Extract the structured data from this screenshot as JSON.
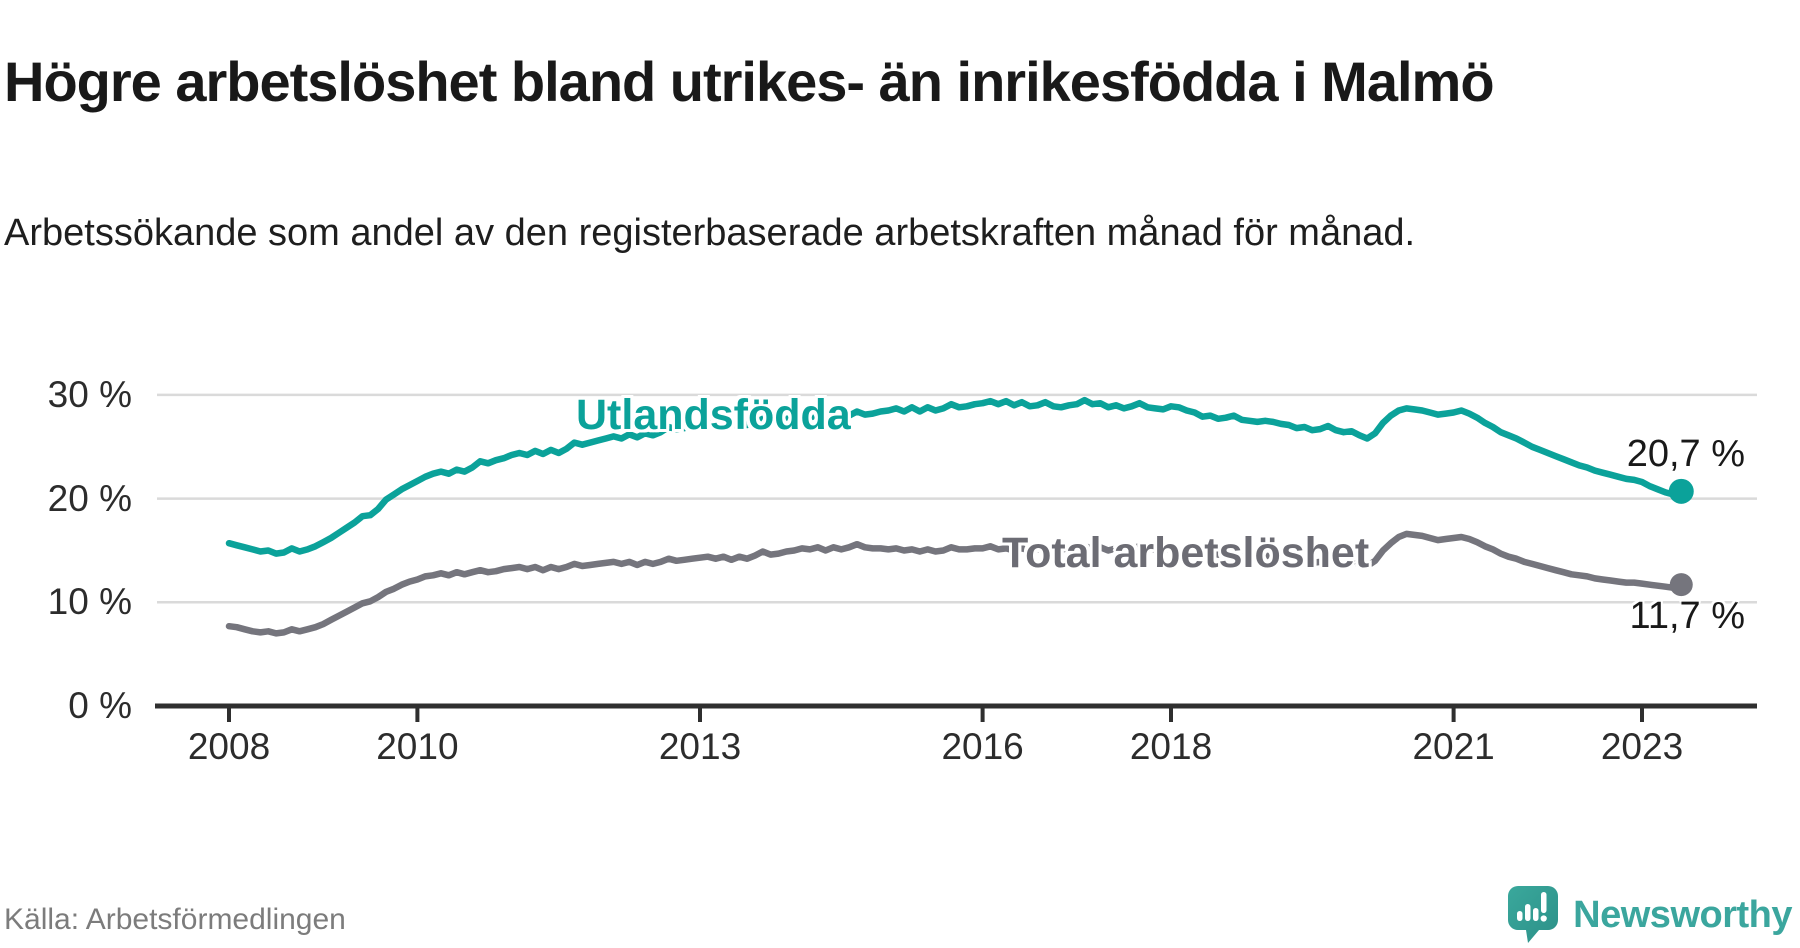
{
  "header": {
    "title": "Högre arbetslöshet bland utrikes- än inrikesfödda i Malmö",
    "subtitle": "Arbetssökande som andel av den registerbaserade arbetskraften månad för månad."
  },
  "footer": {
    "source": "Källa: Arbetsförmedlingen",
    "brand": "Newsworthy"
  },
  "colors": {
    "accent_teal": "#0ba29a",
    "line_gray": "#75757d",
    "label_gray": "#6c6c74",
    "gridline": "#dadada",
    "axis": "#2f2f2f",
    "brand_teal": "#3ba69e"
  },
  "chart_data": {
    "type": "line",
    "title": "Högre arbetslöshet bland utrikes- än inrikesfödda i Malmö",
    "subtitle": "Arbetssökande som andel av den registerbaserade arbetskraften månad för månad.",
    "xlabel": "",
    "ylabel": "",
    "grid": true,
    "legend_position": "inline-labels",
    "x_unit": "monthly, Jan 2008 – Jun 2023",
    "x_start_year": 2008,
    "x_step_years": 0.0833333,
    "xlim": [
      2007.25,
      2024.2
    ],
    "ylim": [
      0,
      31
    ],
    "x_ticks": [
      {
        "v": 2008,
        "label": "2008"
      },
      {
        "v": 2010,
        "label": "2010"
      },
      {
        "v": 2013,
        "label": "2013"
      },
      {
        "v": 2016,
        "label": "2016"
      },
      {
        "v": 2018,
        "label": "2018"
      },
      {
        "v": 2021,
        "label": "2021"
      },
      {
        "v": 2023,
        "label": "2023"
      }
    ],
    "y_ticks": [
      {
        "v": 0,
        "label": "0 %"
      },
      {
        "v": 10,
        "label": "10 %"
      },
      {
        "v": 20,
        "label": "20 %"
      },
      {
        "v": 30,
        "label": "30 %"
      }
    ],
    "series": [
      {
        "name": "Utlandsfödda",
        "color": "#0ba29a",
        "end_value": 20.7,
        "end_label": "20,7 %",
        "values": [
          15.7,
          15.5,
          15.3,
          15.1,
          14.9,
          15.0,
          14.7,
          14.8,
          15.2,
          14.9,
          15.1,
          15.4,
          15.8,
          16.2,
          16.7,
          17.2,
          17.7,
          18.3,
          18.4,
          19.0,
          19.9,
          20.4,
          20.9,
          21.3,
          21.7,
          22.1,
          22.4,
          22.6,
          22.4,
          22.8,
          22.6,
          23.0,
          23.6,
          23.4,
          23.7,
          23.9,
          24.2,
          24.4,
          24.2,
          24.6,
          24.3,
          24.7,
          24.4,
          24.8,
          25.4,
          25.2,
          25.4,
          25.6,
          25.8,
          26.0,
          25.8,
          26.2,
          25.9,
          26.3,
          26.1,
          26.4,
          26.9,
          26.7,
          26.8,
          27.0,
          27.1,
          27.3,
          27.1,
          27.4,
          27.0,
          27.4,
          27.1,
          27.3,
          27.7,
          27.4,
          27.5,
          27.7,
          27.8,
          28.0,
          27.8,
          28.1,
          27.7,
          28.1,
          27.8,
          28.0,
          28.4,
          28.1,
          28.2,
          28.4,
          28.5,
          28.7,
          28.4,
          28.8,
          28.4,
          28.8,
          28.5,
          28.7,
          29.1,
          28.8,
          28.9,
          29.1,
          29.2,
          29.4,
          29.1,
          29.4,
          29.0,
          29.3,
          28.9,
          29.0,
          29.3,
          28.9,
          28.8,
          29.0,
          29.1,
          29.5,
          29.1,
          29.2,
          28.8,
          29.0,
          28.7,
          28.9,
          29.2,
          28.8,
          28.7,
          28.6,
          28.9,
          28.8,
          28.5,
          28.3,
          27.9,
          28.0,
          27.7,
          27.8,
          28.0,
          27.6,
          27.5,
          27.4,
          27.5,
          27.4,
          27.2,
          27.1,
          26.8,
          26.9,
          26.6,
          26.7,
          27.0,
          26.6,
          26.4,
          26.5,
          26.1,
          25.8,
          26.3,
          27.3,
          28.0,
          28.5,
          28.7,
          28.6,
          28.5,
          28.3,
          28.1,
          28.2,
          28.3,
          28.5,
          28.2,
          27.8,
          27.3,
          26.9,
          26.4,
          26.1,
          25.8,
          25.4,
          25.0,
          24.7,
          24.4,
          24.1,
          23.8,
          23.5,
          23.2,
          23.0,
          22.7,
          22.5,
          22.3,
          22.1,
          21.9,
          21.8,
          21.6,
          21.2,
          20.9,
          20.6,
          20.4,
          20.7
        ]
      },
      {
        "name": "Total arbetslöshet",
        "color": "#75757d",
        "end_value": 11.7,
        "end_label": "11,7 %",
        "values": [
          7.7,
          7.6,
          7.4,
          7.2,
          7.1,
          7.2,
          7.0,
          7.1,
          7.4,
          7.2,
          7.4,
          7.6,
          7.9,
          8.3,
          8.7,
          9.1,
          9.5,
          9.9,
          10.1,
          10.5,
          11.0,
          11.3,
          11.7,
          12.0,
          12.2,
          12.5,
          12.6,
          12.8,
          12.6,
          12.9,
          12.7,
          12.9,
          13.1,
          12.9,
          13.0,
          13.2,
          13.3,
          13.4,
          13.2,
          13.4,
          13.1,
          13.4,
          13.2,
          13.4,
          13.7,
          13.5,
          13.6,
          13.7,
          13.8,
          13.9,
          13.7,
          13.9,
          13.6,
          13.9,
          13.7,
          13.9,
          14.2,
          14.0,
          14.1,
          14.2,
          14.3,
          14.4,
          14.2,
          14.4,
          14.1,
          14.4,
          14.2,
          14.5,
          14.9,
          14.6,
          14.7,
          14.9,
          15.0,
          15.2,
          15.1,
          15.3,
          15.0,
          15.3,
          15.1,
          15.3,
          15.6,
          15.3,
          15.2,
          15.2,
          15.1,
          15.2,
          15.0,
          15.1,
          14.9,
          15.1,
          14.9,
          15.0,
          15.3,
          15.1,
          15.1,
          15.2,
          15.2,
          15.4,
          15.1,
          15.2,
          15.0,
          15.2,
          15.0,
          15.1,
          15.4,
          15.2,
          15.1,
          15.2,
          15.3,
          15.4,
          15.2,
          15.3,
          15.0,
          15.2,
          15.0,
          15.2,
          15.4,
          15.2,
          15.1,
          15.0,
          15.2,
          15.1,
          15.0,
          14.9,
          14.7,
          14.8,
          14.6,
          14.7,
          14.9,
          14.6,
          14.5,
          14.4,
          14.5,
          14.4,
          14.2,
          14.1,
          13.9,
          14.0,
          13.8,
          13.9,
          14.2,
          13.9,
          13.8,
          13.9,
          13.7,
          13.5,
          14.0,
          15.0,
          15.7,
          16.3,
          16.6,
          16.5,
          16.4,
          16.2,
          16.0,
          16.1,
          16.2,
          16.3,
          16.1,
          15.8,
          15.4,
          15.1,
          14.7,
          14.4,
          14.2,
          13.9,
          13.7,
          13.5,
          13.3,
          13.1,
          12.9,
          12.7,
          12.6,
          12.5,
          12.3,
          12.2,
          12.1,
          12.0,
          11.9,
          11.9,
          11.8,
          11.7,
          11.6,
          11.5,
          11.4,
          11.7
        ]
      }
    ]
  }
}
